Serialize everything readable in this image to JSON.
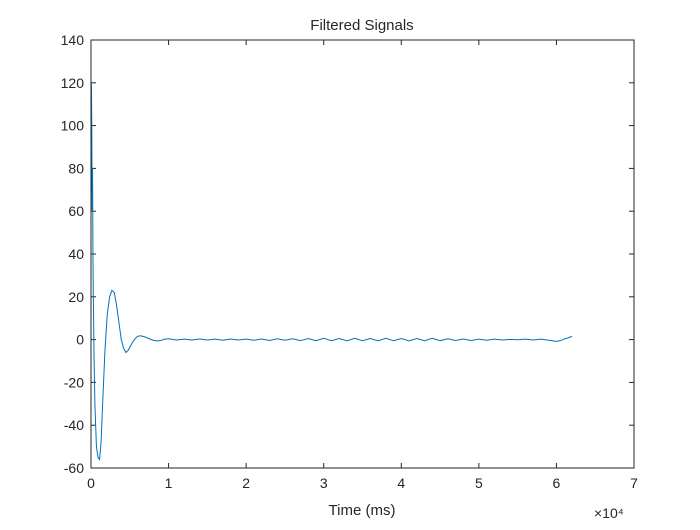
{
  "chart_data": {
    "type": "line",
    "title": "Filtered Signals",
    "xlabel": "Time (ms)",
    "ylabel": "",
    "xlim": [
      0,
      70000
    ],
    "ylim": [
      -60,
      140
    ],
    "x_ticks": [
      0,
      10000,
      20000,
      30000,
      40000,
      50000,
      60000,
      70000
    ],
    "x_tick_labels": [
      "0",
      "1",
      "2",
      "3",
      "4",
      "5",
      "6",
      "7"
    ],
    "x_exponent_label": "×10⁴",
    "y_ticks": [
      -60,
      -40,
      -20,
      0,
      20,
      40,
      60,
      80,
      100,
      120,
      140
    ],
    "y_tick_labels": [
      "-60",
      "-40",
      "-20",
      "0",
      "20",
      "40",
      "60",
      "80",
      "100",
      "120",
      "140"
    ],
    "grid": false,
    "line_color": "#0072BD",
    "series": [
      {
        "x": [
          0,
          50,
          100,
          150,
          200,
          250,
          300,
          400,
          500,
          700,
          900,
          1100,
          1300,
          1500,
          1800,
          2100,
          2400,
          2700,
          3000,
          3300,
          3600,
          3900,
          4200,
          4500,
          4800,
          5100,
          5400,
          5700,
          6000,
          6400,
          7000,
          7500,
          8000,
          8500,
          9000,
          9500,
          10000,
          11000,
          12000,
          13000,
          14000,
          15000,
          16000,
          17000,
          18000,
          19000,
          20000,
          21000,
          22000,
          23000,
          24000,
          25000,
          26000,
          27000,
          28000,
          29000,
          30000,
          31000,
          32000,
          33000,
          34000,
          35000,
          36000,
          37000,
          38000,
          39000,
          40000,
          41000,
          42000,
          43000,
          44000,
          45000,
          46000,
          47000,
          48000,
          49000,
          50000,
          51000,
          52000,
          53000,
          54000,
          55000,
          56000,
          57000,
          58000,
          59000,
          60000,
          60500,
          61000,
          61500,
          62000
        ],
        "y": [
          60,
          120,
          100,
          60,
          80,
          40,
          20,
          -10,
          -30,
          -50,
          -55,
          -56,
          -48,
          -30,
          -5,
          12,
          20,
          23,
          22,
          16,
          8,
          0,
          -4,
          -6,
          -5,
          -3,
          -1,
          0.5,
          1.5,
          1.8,
          1.2,
          0.4,
          -0.3,
          -0.6,
          -0.4,
          0.2,
          0.4,
          -0.2,
          0.2,
          -0.2,
          0.3,
          -0.2,
          0.2,
          -0.3,
          0.3,
          -0.2,
          0.2,
          -0.3,
          0.3,
          -0.4,
          0.4,
          -0.3,
          0.4,
          -0.5,
          0.5,
          -0.5,
          0.6,
          -0.5,
          0.5,
          -0.6,
          0.6,
          -0.5,
          0.5,
          -0.6,
          0.6,
          -0.5,
          0.5,
          -0.6,
          0.5,
          -0.5,
          0.6,
          -0.5,
          0.4,
          -0.4,
          0.3,
          -0.4,
          0.2,
          -0.3,
          0.2,
          -0.2,
          0.1,
          -0.1,
          0.2,
          -0.2,
          0.2,
          -0.3,
          -0.8,
          -0.5,
          0.3,
          0.8,
          1.5
        ]
      }
    ]
  }
}
